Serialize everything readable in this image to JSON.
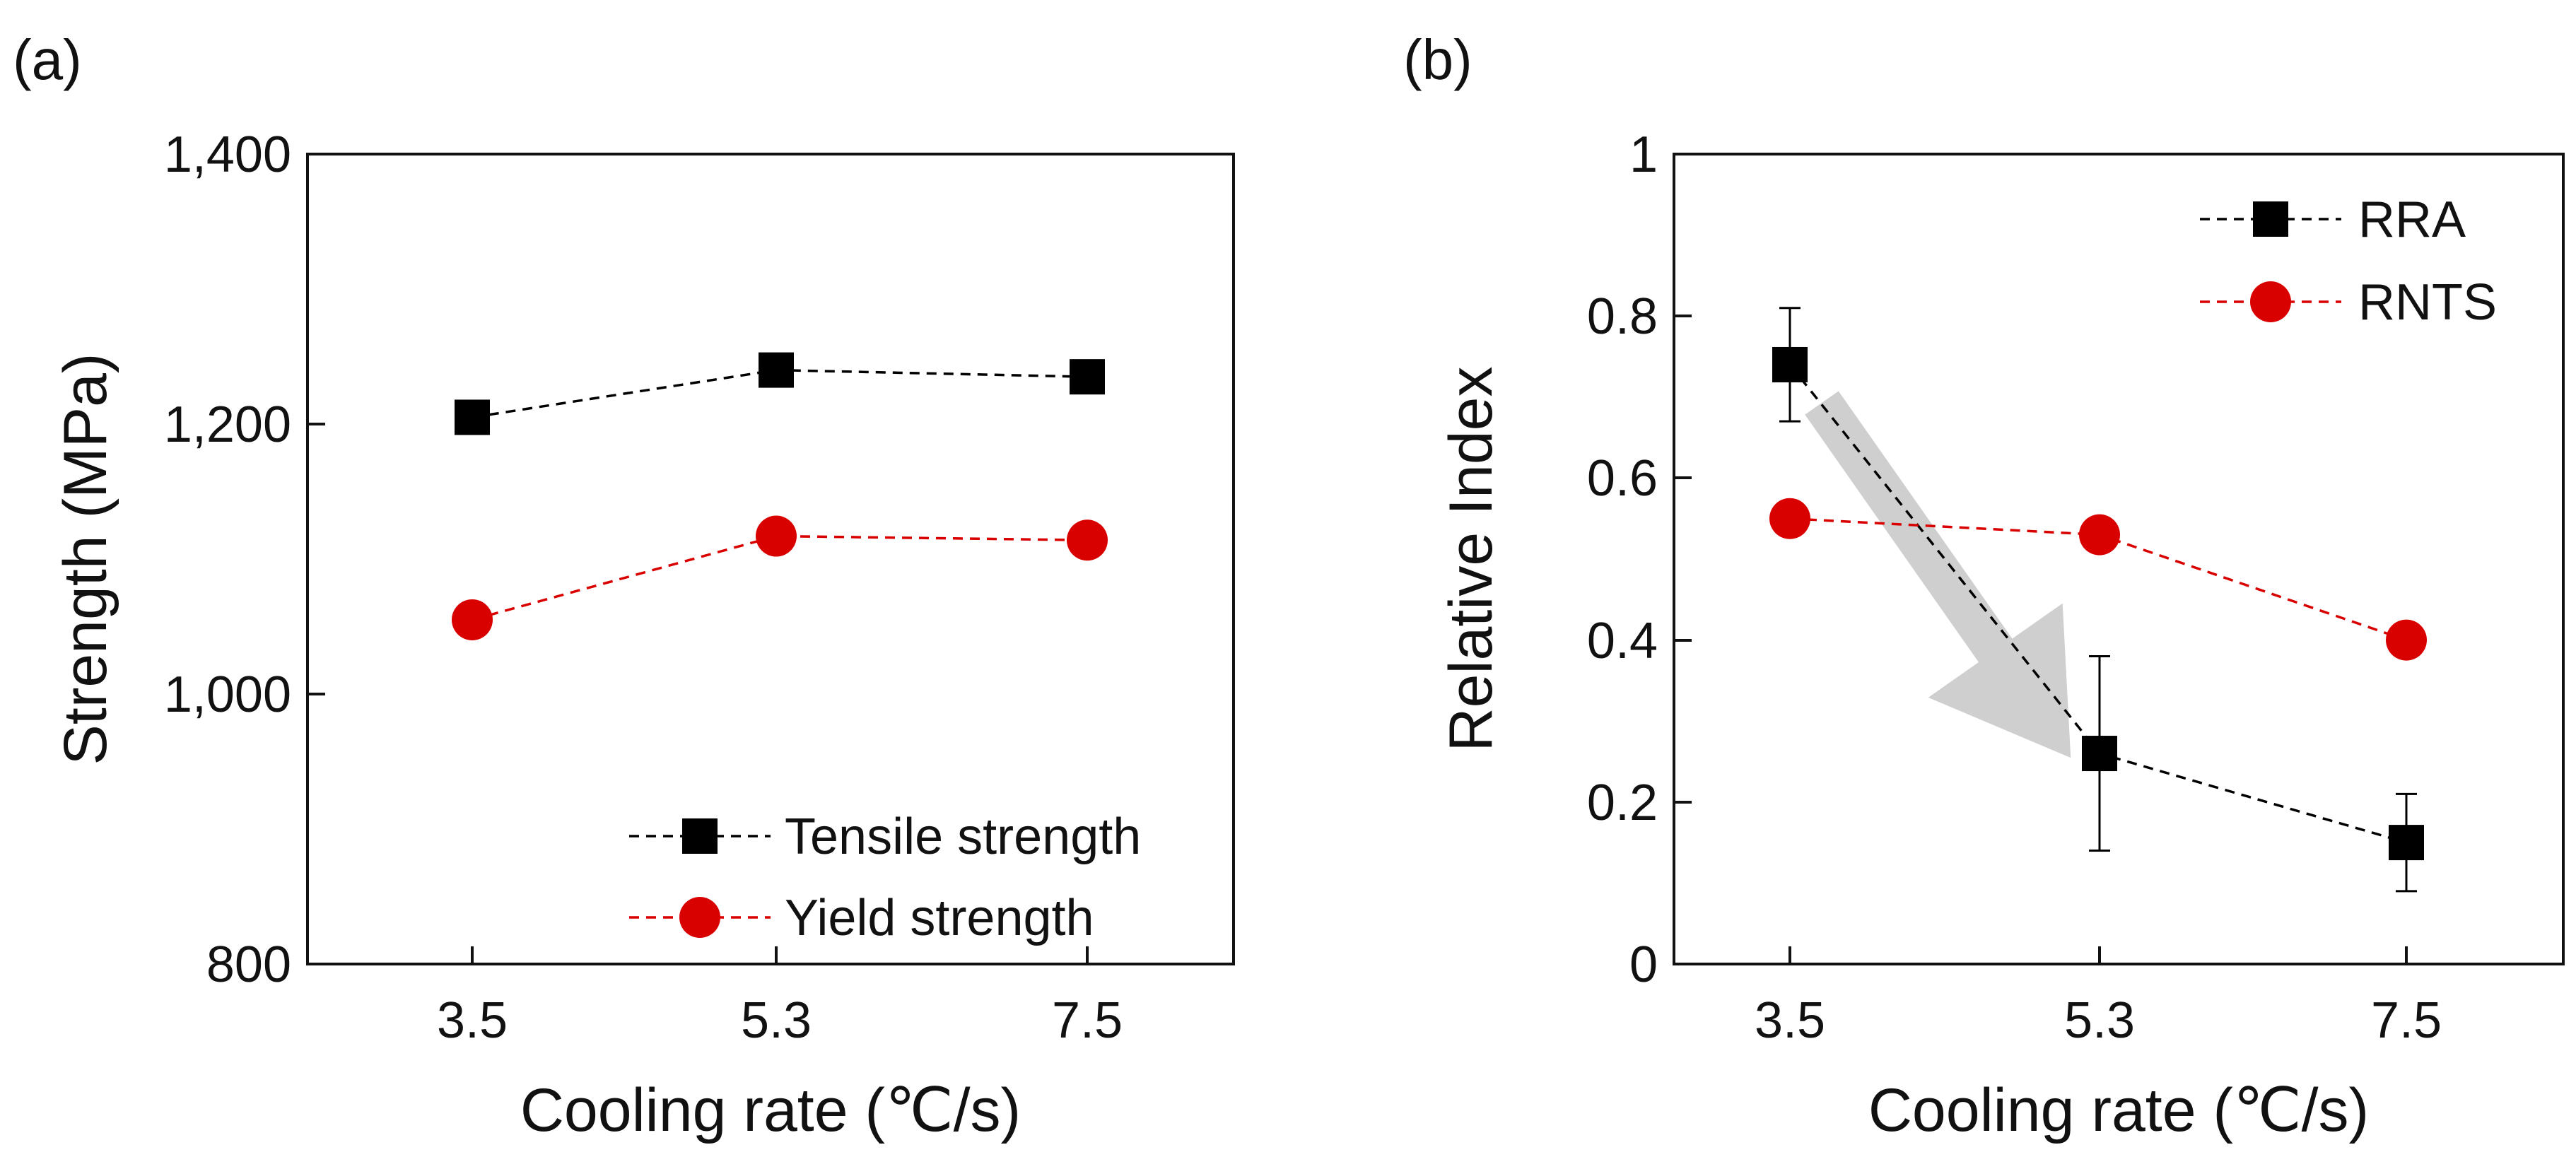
{
  "chart_data": [
    {
      "type": "line",
      "panel_label": "(a)",
      "xlabel": "Cooling rate (℃/s)",
      "ylabel": "Strength (MPa)",
      "categories": [
        "3.5",
        "5.3",
        "7.5"
      ],
      "ylim": [
        800,
        1400
      ],
      "yticks": [
        800,
        1000,
        1200,
        1400
      ],
      "ytick_labels": [
        "800",
        "1,000",
        "1,200",
        "1,400"
      ],
      "grid": false,
      "legend_position": "bottom-right",
      "series": [
        {
          "name": "Tensile strength",
          "marker": "square",
          "color": "#000000",
          "line_style": "dashed",
          "values": [
            1205,
            1240,
            1235
          ]
        },
        {
          "name": "Yield strength",
          "marker": "circle",
          "color": "#d90000",
          "line_style": "dashed",
          "values": [
            1055,
            1117,
            1114
          ]
        }
      ]
    },
    {
      "type": "line",
      "panel_label": "(b)",
      "xlabel": "Cooling rate (℃/s)",
      "ylabel": "Relative Index",
      "categories": [
        "3.5",
        "5.3",
        "7.5"
      ],
      "ylim": [
        0,
        1
      ],
      "yticks": [
        0,
        0.2,
        0.4,
        0.6,
        0.8,
        1
      ],
      "ytick_labels": [
        "0",
        "0.2",
        "0.4",
        "0.6",
        "0.8",
        "1"
      ],
      "grid": false,
      "legend_position": "top-right",
      "annotation": "gray arrow indicating decreasing RRA",
      "series": [
        {
          "name": "RRA",
          "marker": "square",
          "color": "#000000",
          "line_style": "dashed",
          "values": [
            0.74,
            0.26,
            0.15
          ],
          "errors": [
            0.07,
            0.12,
            0.06
          ]
        },
        {
          "name": "RNTS",
          "marker": "circle",
          "color": "#d90000",
          "line_style": "dashed",
          "values": [
            0.55,
            0.53,
            0.4
          ]
        }
      ]
    }
  ]
}
